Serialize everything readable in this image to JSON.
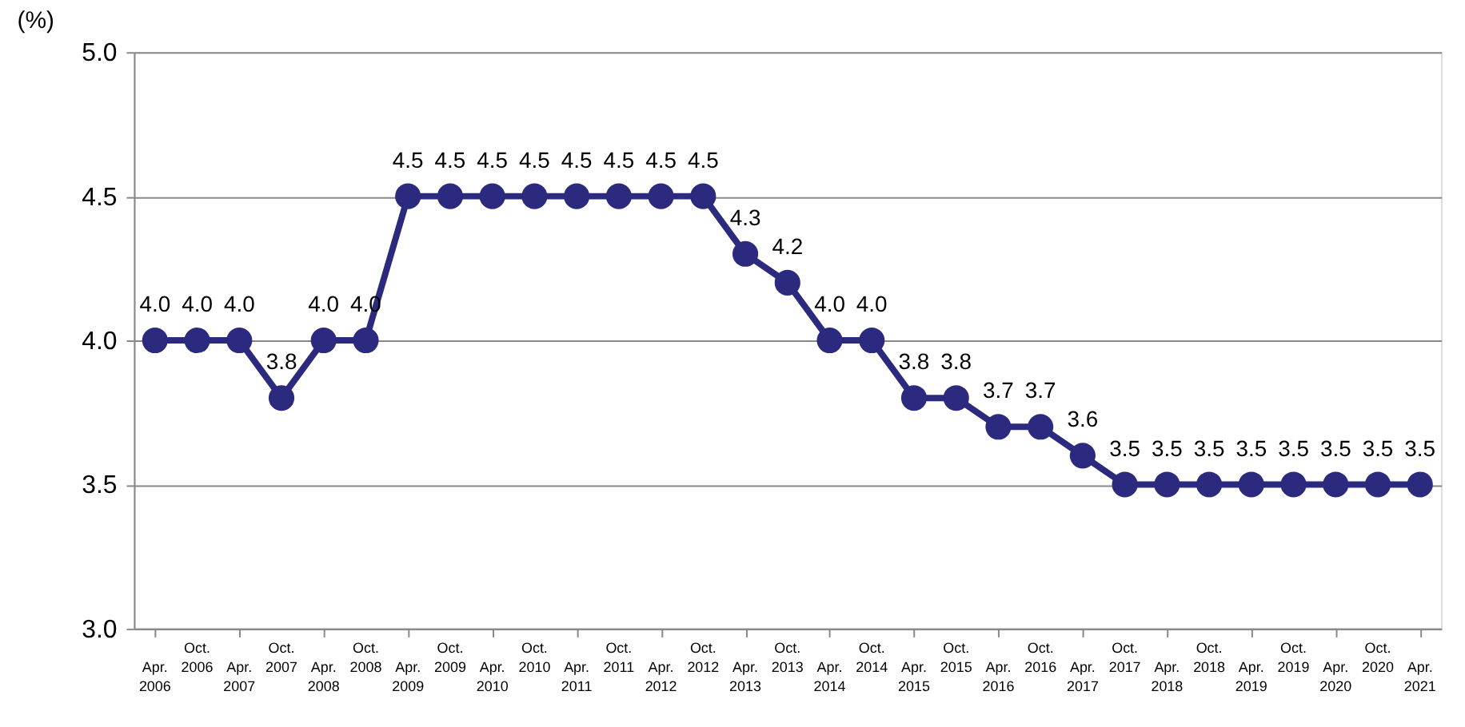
{
  "chart_data": {
    "type": "line",
    "ylabel": "(%)",
    "categories": [
      "Apr. 2006",
      "Oct. 2006",
      "Apr. 2007",
      "Oct. 2007",
      "Apr. 2008",
      "Oct. 2008",
      "Apr. 2009",
      "Oct. 2009",
      "Apr. 2010",
      "Oct. 2010",
      "Apr. 2011",
      "Oct. 2011",
      "Apr. 2012",
      "Oct. 2012",
      "Apr. 2013",
      "Oct. 2013",
      "Apr. 2014",
      "Oct. 2014",
      "Apr. 2015",
      "Oct. 2015",
      "Apr. 2016",
      "Oct. 2016",
      "Apr. 2017",
      "Oct. 2017",
      "Apr. 2018",
      "Oct. 2018",
      "Apr. 2019",
      "Oct. 2019",
      "Apr. 2020",
      "Oct. 2020",
      "Apr. 2021"
    ],
    "series": [
      {
        "color": "#2b2a7f",
        "values": [
          4.0,
          4.0,
          4.0,
          3.8,
          4.0,
          4.0,
          4.5,
          4.5,
          4.5,
          4.5,
          4.5,
          4.5,
          4.5,
          4.5,
          4.3,
          4.2,
          4.0,
          4.0,
          3.8,
          3.8,
          3.7,
          3.7,
          3.6,
          3.5,
          3.5,
          3.5,
          3.5,
          3.5,
          3.5,
          3.5,
          3.5
        ],
        "value_labels": [
          "4.0",
          "4.0",
          "4.0",
          "3.8",
          "4.0",
          "4.0",
          "4.5",
          "4.5",
          "4.5",
          "4.5",
          "4.5",
          "4.5",
          "4.5",
          "4.5",
          "4.3",
          "4.2",
          "4.0",
          "4.0",
          "3.8",
          "3.8",
          "3.7",
          "3.7",
          "3.6",
          "3.5",
          "3.5",
          "3.5",
          "3.5",
          "3.5",
          "3.5",
          "3.5",
          "3.5"
        ]
      }
    ],
    "ylim": [
      3.0,
      5.0
    ],
    "yticks": [
      {
        "value": 3,
        "label": "3.0"
      },
      {
        "value": 3.5,
        "label": "3.5"
      },
      {
        "value": 4,
        "label": "4.0"
      },
      {
        "value": 4.5,
        "label": "4.5"
      },
      {
        "value": 5,
        "label": "5.0"
      }
    ],
    "grid": "y",
    "marker": "circle",
    "line_style": "solid"
  }
}
